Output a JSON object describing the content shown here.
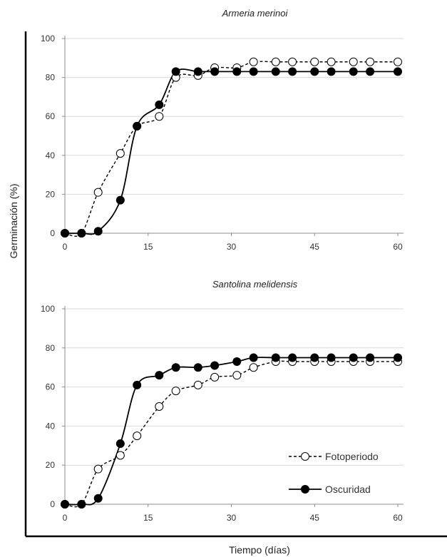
{
  "ylabel": "Germinación (%)",
  "xlabel": "Tiempo (días)",
  "legend": {
    "placement": "bottom-right of lower panel",
    "items": [
      {
        "label": "Fotoperiodo",
        "style": "dashed",
        "marker": "open-circle"
      },
      {
        "label": "Oscuridad",
        "style": "solid",
        "marker": "filled-circle"
      }
    ]
  },
  "chart_data": [
    {
      "type": "line",
      "title": "Armeria merinoi",
      "xlim": [
        0,
        60
      ],
      "ylim": [
        0,
        100
      ],
      "xticks": [
        0,
        15,
        30,
        45,
        60
      ],
      "yticks": [
        0,
        20,
        40,
        60,
        80,
        100
      ],
      "grid": {
        "horizontal": true,
        "vertical": false
      },
      "series": [
        {
          "name": "Fotoperiodo",
          "line": "dashed",
          "marker": "open",
          "x": [
            0,
            3,
            6,
            10,
            13,
            17,
            20,
            24,
            27,
            31,
            34,
            38,
            41,
            45,
            48,
            52,
            55,
            60
          ],
          "y": [
            0,
            0,
            21,
            41,
            55,
            60,
            80,
            81,
            85,
            85,
            88,
            88,
            88,
            88,
            88,
            88,
            88,
            88
          ]
        },
        {
          "name": "Oscuridad",
          "line": "solid",
          "marker": "filled",
          "x": [
            0,
            3,
            6,
            10,
            13,
            17,
            20,
            24,
            27,
            31,
            34,
            38,
            41,
            45,
            48,
            52,
            55,
            60
          ],
          "y": [
            0,
            0,
            1,
            17,
            55,
            66,
            83,
            83,
            83,
            83,
            83,
            83,
            83,
            83,
            83,
            83,
            83,
            83
          ]
        }
      ]
    },
    {
      "type": "line",
      "title": "Santolina melidensis",
      "xlim": [
        0,
        60
      ],
      "ylim": [
        0,
        100
      ],
      "xticks": [
        0,
        15,
        30,
        45,
        60
      ],
      "yticks": [
        0,
        20,
        40,
        60,
        80,
        100
      ],
      "grid": {
        "horizontal": true,
        "vertical": false
      },
      "series": [
        {
          "name": "Fotoperiodo",
          "line": "dashed",
          "marker": "open",
          "x": [
            0,
            3,
            6,
            10,
            13,
            17,
            20,
            24,
            27,
            31,
            34,
            38,
            41,
            45,
            48,
            52,
            55,
            60
          ],
          "y": [
            0,
            0,
            18,
            25,
            35,
            50,
            58,
            61,
            65,
            66,
            70,
            73,
            73,
            73,
            73,
            73,
            73,
            73
          ]
        },
        {
          "name": "Oscuridad",
          "line": "solid",
          "marker": "filled",
          "x": [
            0,
            3,
            6,
            10,
            13,
            17,
            20,
            24,
            27,
            31,
            34,
            38,
            41,
            45,
            48,
            52,
            55,
            60
          ],
          "y": [
            0,
            0,
            3,
            31,
            61,
            66,
            70,
            70,
            71,
            73,
            75,
            75,
            75,
            75,
            75,
            75,
            75,
            75
          ]
        }
      ]
    }
  ]
}
